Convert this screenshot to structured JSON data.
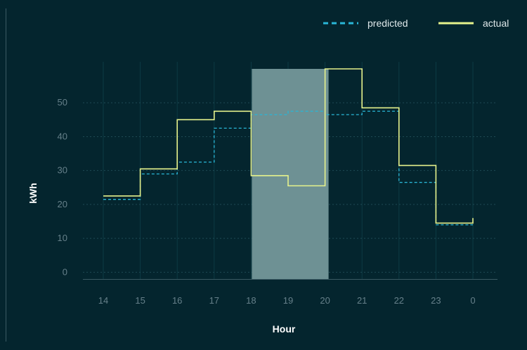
{
  "chart_data": {
    "type": "line",
    "step": true,
    "x": [
      "14",
      "15",
      "16",
      "17",
      "18",
      "19",
      "20",
      "21",
      "22",
      "23",
      "0"
    ],
    "series": [
      {
        "name": "predicted",
        "style": "dashed",
        "color": "#29b6d6",
        "values": [
          21.5,
          29,
          32.5,
          42.5,
          46.5,
          47.5,
          46.5,
          47.5,
          26.5,
          14,
          14
        ]
      },
      {
        "name": "actual",
        "style": "solid",
        "color": "#e6f28c",
        "values": [
          22.5,
          30.5,
          45,
          47.5,
          28.5,
          25.5,
          60,
          48.5,
          31.5,
          14.5,
          16
        ]
      }
    ],
    "highlight": {
      "from": "18",
      "to": "20",
      "color": "#6e9194"
    },
    "xlabel": "Hour",
    "ylabel": "kWh",
    "yticks": [
      "0",
      "10",
      "20",
      "30",
      "40",
      "50"
    ],
    "ylim": [
      -2,
      60
    ],
    "grid": true,
    "legend": "top-right"
  }
}
